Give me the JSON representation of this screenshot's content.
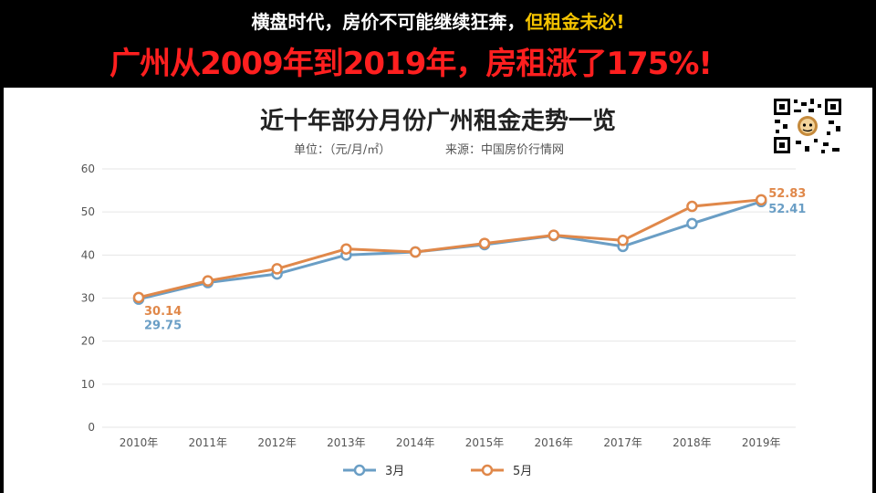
{
  "banner": {
    "line1_white": "横盘时代，房价不可能继续狂奔，",
    "line1_yellow": "但租金未必!",
    "line2": "广州从2009年到2019年，房租涨了175%!"
  },
  "colors": {
    "background": "#000000",
    "headline_white": "#ffffff",
    "headline_yellow": "#f5c400",
    "headline_red": "#ff1f1f",
    "series_march": "#6a9ec5",
    "series_may": "#e0884a",
    "grid": "#e6e6e6"
  },
  "qr_code": {
    "icon": "qr-code-icon"
  },
  "chart_data": {
    "type": "line",
    "title": "近十年部分月份广州租金走势一览",
    "unit_label": "单位：（元/月/㎡）",
    "source_label": "来源：中国房价行情网",
    "categories": [
      "2010年",
      "2011年",
      "2012年",
      "2013年",
      "2014年",
      "2015年",
      "2016年",
      "2017年",
      "2018年",
      "2019年"
    ],
    "series": [
      {
        "name": "3月",
        "color": "#6a9ec5",
        "values": [
          29.75,
          33.6,
          35.6,
          40.0,
          40.7,
          42.4,
          44.5,
          42.0,
          47.3,
          52.41
        ]
      },
      {
        "name": "5月",
        "color": "#e0884a",
        "values": [
          30.14,
          34.0,
          36.8,
          41.4,
          40.7,
          42.7,
          44.6,
          43.4,
          51.3,
          52.83
        ]
      }
    ],
    "data_labels": [
      {
        "series": "5月",
        "index": 0,
        "text": "30.14"
      },
      {
        "series": "3月",
        "index": 0,
        "text": "29.75"
      },
      {
        "series": "5月",
        "index": 9,
        "text": "52.83"
      },
      {
        "series": "3月",
        "index": 9,
        "text": "52.41"
      }
    ],
    "yticks": [
      "0",
      "10",
      "20",
      "30",
      "40",
      "50",
      "60"
    ],
    "ylim": [
      0,
      60
    ],
    "grid": true,
    "legend_position": "bottom"
  }
}
